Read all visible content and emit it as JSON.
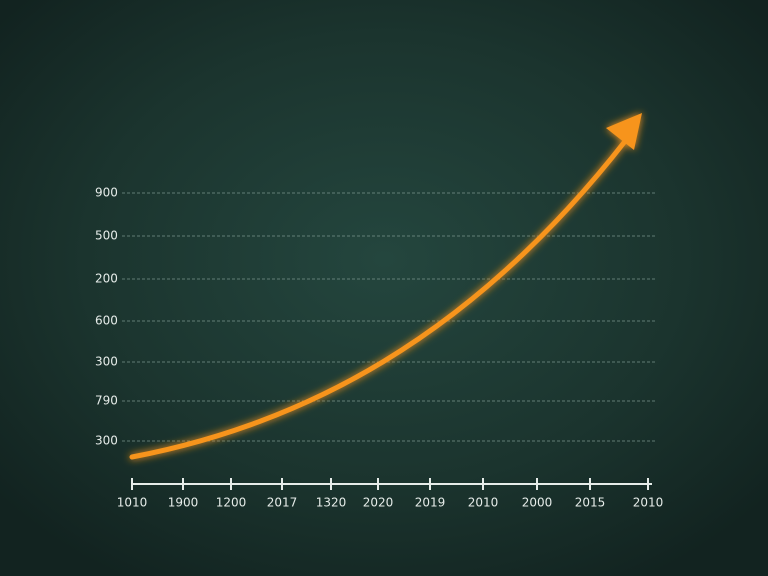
{
  "y_labels": [
    "900",
    "500",
    "200",
    "600",
    "300",
    "790",
    "300"
  ],
  "x_labels": [
    "1010",
    "1900",
    "1200",
    "2017",
    "1320",
    "2020",
    "2019",
    "2010",
    "2000",
    "2015",
    "2010"
  ]
}
